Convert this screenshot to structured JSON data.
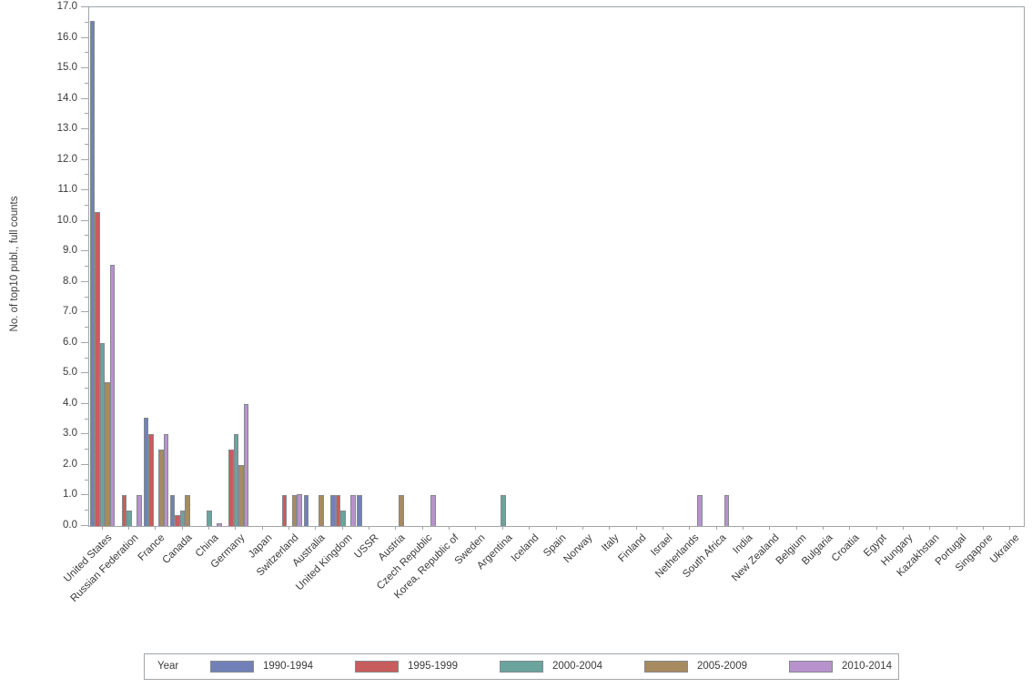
{
  "chart_data": {
    "type": "bar",
    "title": "",
    "xlabel": "",
    "ylabel": "No. of top10 publ., full counts",
    "ylim": [
      0.0,
      17.0
    ],
    "ytick_step": 1.0,
    "ytick_minor_step": 0.5,
    "grid": false,
    "legend": {
      "title": "Year",
      "position": "bottom"
    },
    "categories": [
      "United States",
      "Russian Federation",
      "France",
      "Canada",
      "China",
      "Germany",
      "Japan",
      "Switzerland",
      "Australia",
      "United Kingdom",
      "USSR",
      "Austria",
      "Czech Republic",
      "Korea, Republic of",
      "Sweden",
      "Argentina",
      "Iceland",
      "Spain",
      "Norway",
      "Italy",
      "Finland",
      "Israel",
      "Netherlands",
      "South Africa",
      "India",
      "New Zealand",
      "Belgium",
      "Bulgaria",
      "Croatia",
      "Egypt",
      "Hungary",
      "Kazakhstan",
      "Portugal",
      "Singapore",
      "Ukraine"
    ],
    "series": [
      {
        "name": "1990-1994",
        "color": "#7181b7",
        "values": [
          16.55,
          0,
          3.55,
          1.0,
          0,
          0,
          0,
          0,
          1.0,
          1.0,
          1.0,
          0,
          0,
          0,
          0,
          0,
          0,
          0,
          0,
          0,
          0,
          0,
          0,
          0,
          0,
          0,
          0,
          0,
          0,
          0,
          0,
          0,
          0,
          0,
          0
        ]
      },
      {
        "name": "1995-1999",
        "color": "#c75d5c",
        "values": [
          10.3,
          1.0,
          3.0,
          0.35,
          0,
          2.5,
          0,
          1.0,
          0,
          1.0,
          0,
          0,
          0,
          0,
          0,
          0,
          0,
          0,
          0,
          0,
          0,
          0,
          0,
          0,
          0,
          0,
          0,
          0,
          0,
          0,
          0,
          0,
          0,
          0,
          0
        ]
      },
      {
        "name": "2000-2004",
        "color": "#6aa49d",
        "values": [
          6.0,
          0.5,
          0,
          0.5,
          0.5,
          3.0,
          0,
          0,
          0,
          0.5,
          0,
          0,
          0,
          0,
          0,
          1.0,
          0,
          0,
          0,
          0,
          0,
          0,
          0,
          0,
          0,
          0,
          0,
          0,
          0,
          0,
          0,
          0,
          0,
          0,
          0
        ]
      },
      {
        "name": "2005-2009",
        "color": "#a88a61",
        "values": [
          4.7,
          0,
          2.5,
          1.0,
          0,
          2.0,
          0,
          1.0,
          1.0,
          0,
          0,
          1.0,
          0,
          0,
          0,
          0,
          0,
          0,
          0,
          0,
          0,
          0,
          0,
          0,
          0,
          0,
          0,
          0,
          0,
          0,
          0,
          0,
          0,
          0,
          0
        ]
      },
      {
        "name": "2010-2014",
        "color": "#b892cd",
        "values": [
          8.55,
          1.0,
          3.0,
          0,
          0.1,
          4.0,
          0,
          1.05,
          0,
          1.0,
          0,
          0,
          1.0,
          0,
          0,
          0,
          0,
          0,
          0,
          0,
          0,
          0,
          1.0,
          1.0,
          0,
          0,
          0,
          0,
          0,
          0,
          0,
          0,
          0,
          0,
          0
        ]
      }
    ]
  },
  "colors": {
    "frame": "#a2a6a9",
    "tick": "#a2a6a9",
    "text": "#3b3b3b",
    "bar_border": "#84898d",
    "background": "#ffffff"
  }
}
